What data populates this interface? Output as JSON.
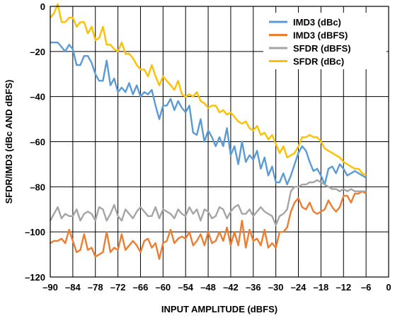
{
  "chart_data": {
    "type": "line",
    "xlabel": "INPUT AMPLITUDE (dBFS)",
    "ylabel": "SFDR/IMD3 (dBc AND dBFS)",
    "xlim": [
      -90,
      0
    ],
    "ylim": [
      -120,
      0
    ],
    "xticks": [
      -90,
      -84,
      -78,
      -72,
      -66,
      -60,
      -54,
      -48,
      -42,
      -36,
      -30,
      -24,
      -18,
      -12,
      -6,
      0
    ],
    "xtick_labels": [
      "–90",
      "–84",
      "–78",
      "–72",
      "–66",
      "–60",
      "–54",
      "–48",
      "–42",
      "–36",
      "–30",
      "–24",
      "–18",
      "–12",
      "–6",
      "0"
    ],
    "yticks": [
      0,
      -20,
      -40,
      -60,
      -80,
      -100,
      -120
    ],
    "ytick_labels": [
      "0",
      "–20",
      "–40",
      "–60",
      "–80",
      "–100",
      "–120"
    ],
    "grid": true,
    "legend_position": "top-right",
    "series": [
      {
        "name": "IMD3 (dBc)",
        "color": "#5b9bd5",
        "x": [
          -90,
          -89,
          -88,
          -87,
          -86,
          -85,
          -84,
          -83,
          -82,
          -81,
          -80,
          -79,
          -78,
          -77,
          -76,
          -75,
          -74,
          -73,
          -72,
          -71,
          -70,
          -69,
          -68,
          -67,
          -66,
          -65,
          -64,
          -63,
          -62,
          -61,
          -60,
          -59,
          -58,
          -57,
          -56,
          -55,
          -54,
          -53,
          -52,
          -51,
          -50,
          -49,
          -48,
          -47,
          -46,
          -45,
          -44,
          -43,
          -42,
          -41,
          -40,
          -39,
          -38,
          -37,
          -36,
          -35,
          -34,
          -33,
          -32,
          -31,
          -30,
          -29,
          -28,
          -27,
          -26,
          -25,
          -24,
          -23,
          -22,
          -21,
          -20,
          -19,
          -18,
          -17,
          -16,
          -15,
          -14,
          -13,
          -12,
          -11,
          -10,
          -9,
          -8,
          -7,
          -6
        ],
        "y": [
          -16,
          -16,
          -16,
          -18,
          -20,
          -17,
          -19,
          -26,
          -26,
          -22,
          -22,
          -25,
          -30,
          -33,
          -33,
          -24,
          -35,
          -32,
          -38,
          -36,
          -38,
          -34,
          -39,
          -35,
          -40,
          -38,
          -39,
          -37,
          -44,
          -50,
          -44,
          -44,
          -41,
          -46,
          -42,
          -45,
          -47,
          -44,
          -56,
          -57,
          -50,
          -60,
          -55,
          -58,
          -62,
          -58,
          -62,
          -54,
          -66,
          -62,
          -70,
          -60,
          -69,
          -66,
          -68,
          -64,
          -72,
          -67,
          -75,
          -71,
          -78,
          -78,
          -74,
          -79,
          -75,
          -70,
          -65,
          -62,
          -64,
          -69,
          -73,
          -72,
          -75,
          -79,
          -72,
          -71,
          -74,
          -70,
          -72,
          -75,
          -74,
          -73,
          -74,
          -75,
          -76
        ]
      },
      {
        "name": "IMD3 (dBFS)",
        "color": "#ed7d31",
        "x": [
          -90,
          -89,
          -88,
          -87,
          -86,
          -85,
          -84,
          -83,
          -82,
          -81,
          -80,
          -79,
          -78,
          -77,
          -76,
          -75,
          -74,
          -73,
          -72,
          -71,
          -70,
          -69,
          -68,
          -67,
          -66,
          -65,
          -64,
          -63,
          -62,
          -61,
          -60,
          -59,
          -58,
          -57,
          -56,
          -55,
          -54,
          -53,
          -52,
          -51,
          -50,
          -49,
          -48,
          -47,
          -46,
          -45,
          -44,
          -43,
          -42,
          -41,
          -40,
          -39,
          -38,
          -37,
          -36,
          -35,
          -34,
          -33,
          -32,
          -31,
          -30,
          -29,
          -28,
          -27,
          -26,
          -25,
          -24,
          -23,
          -22,
          -21,
          -20,
          -19,
          -18,
          -17,
          -16,
          -15,
          -14,
          -13,
          -12,
          -11,
          -10,
          -9,
          -8,
          -7,
          -6
        ],
        "y": [
          -105,
          -104,
          -104,
          -103,
          -105,
          -99,
          -104,
          -109,
          -108,
          -101,
          -108,
          -107,
          -111,
          -110,
          -109,
          -100,
          -109,
          -107,
          -108,
          -101,
          -108,
          -106,
          -104,
          -106,
          -109,
          -104,
          -103,
          -107,
          -105,
          -112,
          -105,
          -104,
          -99,
          -105,
          -103,
          -102,
          -103,
          -100,
          -106,
          -104,
          -101,
          -106,
          -100,
          -105,
          -104,
          -100,
          -104,
          -98,
          -106,
          -100,
          -106,
          -95,
          -107,
          -99,
          -104,
          -103,
          -106,
          -99,
          -107,
          -105,
          -107,
          -100,
          -100,
          -98,
          -91,
          -87,
          -85,
          -89,
          -90,
          -87,
          -91,
          -92,
          -91,
          -90,
          -86,
          -89,
          -91,
          -89,
          -84,
          -84,
          -87,
          -83,
          -83,
          -82,
          -83
        ]
      },
      {
        "name": "SFDR (dBFS)",
        "color": "#a5a5a5",
        "x": [
          -90,
          -89,
          -88,
          -87,
          -86,
          -85,
          -84,
          -83,
          -82,
          -81,
          -80,
          -79,
          -78,
          -77,
          -76,
          -75,
          -74,
          -73,
          -72,
          -71,
          -70,
          -69,
          -68,
          -67,
          -66,
          -65,
          -64,
          -63,
          -62,
          -61,
          -60,
          -59,
          -58,
          -57,
          -56,
          -55,
          -54,
          -53,
          -52,
          -51,
          -50,
          -49,
          -48,
          -47,
          -46,
          -45,
          -44,
          -43,
          -42,
          -41,
          -40,
          -39,
          -38,
          -37,
          -36,
          -35,
          -34,
          -33,
          -32,
          -31,
          -30,
          -29,
          -28,
          -27,
          -26,
          -25,
          -24,
          -23,
          -22,
          -21,
          -20,
          -19,
          -18,
          -17,
          -16,
          -15,
          -14,
          -13,
          -12,
          -11,
          -10,
          -9,
          -8,
          -7,
          -6
        ],
        "y": [
          -95,
          -92,
          -89,
          -94,
          -92,
          -93,
          -93,
          -90,
          -95,
          -92,
          -91,
          -92,
          -95,
          -89,
          -90,
          -95,
          -92,
          -88,
          -93,
          -95,
          -90,
          -92,
          -94,
          -91,
          -89,
          -91,
          -93,
          -93,
          -89,
          -94,
          -90,
          -91,
          -92,
          -94,
          -90,
          -92,
          -93,
          -89,
          -92,
          -90,
          -95,
          -90,
          -91,
          -94,
          -93,
          -89,
          -90,
          -94,
          -91,
          -89,
          -88,
          -92,
          -92,
          -90,
          -93,
          -91,
          -89,
          -91,
          -92,
          -93,
          -97,
          -93,
          -92,
          -90,
          -82,
          -80,
          -80,
          -79,
          -79,
          -78,
          -78,
          -77,
          -78,
          -79,
          -80,
          -81,
          -81,
          -82,
          -81,
          -82,
          -81,
          -82,
          -82,
          -82,
          -82
        ]
      },
      {
        "name": "SFDR (dBc)",
        "color": "#ffc000",
        "x": [
          -90,
          -89,
          -88,
          -87,
          -86,
          -85,
          -84,
          -83,
          -82,
          -81,
          -80,
          -79,
          -78,
          -77,
          -76,
          -75,
          -74,
          -73,
          -72,
          -71,
          -70,
          -69,
          -68,
          -67,
          -66,
          -65,
          -64,
          -63,
          -62,
          -61,
          -60,
          -59,
          -58,
          -57,
          -56,
          -55,
          -54,
          -53,
          -52,
          -51,
          -50,
          -49,
          -48,
          -47,
          -46,
          -45,
          -44,
          -43,
          -42,
          -41,
          -40,
          -39,
          -38,
          -37,
          -36,
          -35,
          -34,
          -33,
          -32,
          -31,
          -30,
          -29,
          -28,
          -27,
          -26,
          -25,
          -24,
          -23,
          -22,
          -21,
          -20,
          -19,
          -18,
          -17,
          -16,
          -15,
          -14,
          -13,
          -12,
          -11,
          -10,
          -9,
          -8,
          -7,
          -6
        ],
        "y": [
          -5,
          -3,
          1,
          -7,
          -7,
          -5,
          -5,
          -9,
          -7,
          -7,
          -12,
          -9,
          -15,
          -14,
          -9,
          -17,
          -17,
          -19,
          -20,
          -16,
          -21,
          -21,
          -23,
          -26,
          -28,
          -28,
          -31,
          -26,
          -31,
          -35,
          -31,
          -33,
          -35,
          -37,
          -33,
          -39,
          -40,
          -39,
          -40,
          -38,
          -42,
          -43,
          -45,
          -44,
          -44,
          -47,
          -46,
          -48,
          -47,
          -49,
          -51,
          -52,
          -51,
          -54,
          -55,
          -53,
          -57,
          -56,
          -59,
          -57,
          -61,
          -65,
          -62,
          -67,
          -66,
          -65,
          -62,
          -58,
          -58,
          -57,
          -58,
          -58,
          -60,
          -63,
          -64,
          -65,
          -66,
          -67,
          -69,
          -70,
          -71,
          -72,
          -72,
          -74,
          -75
        ]
      }
    ]
  }
}
